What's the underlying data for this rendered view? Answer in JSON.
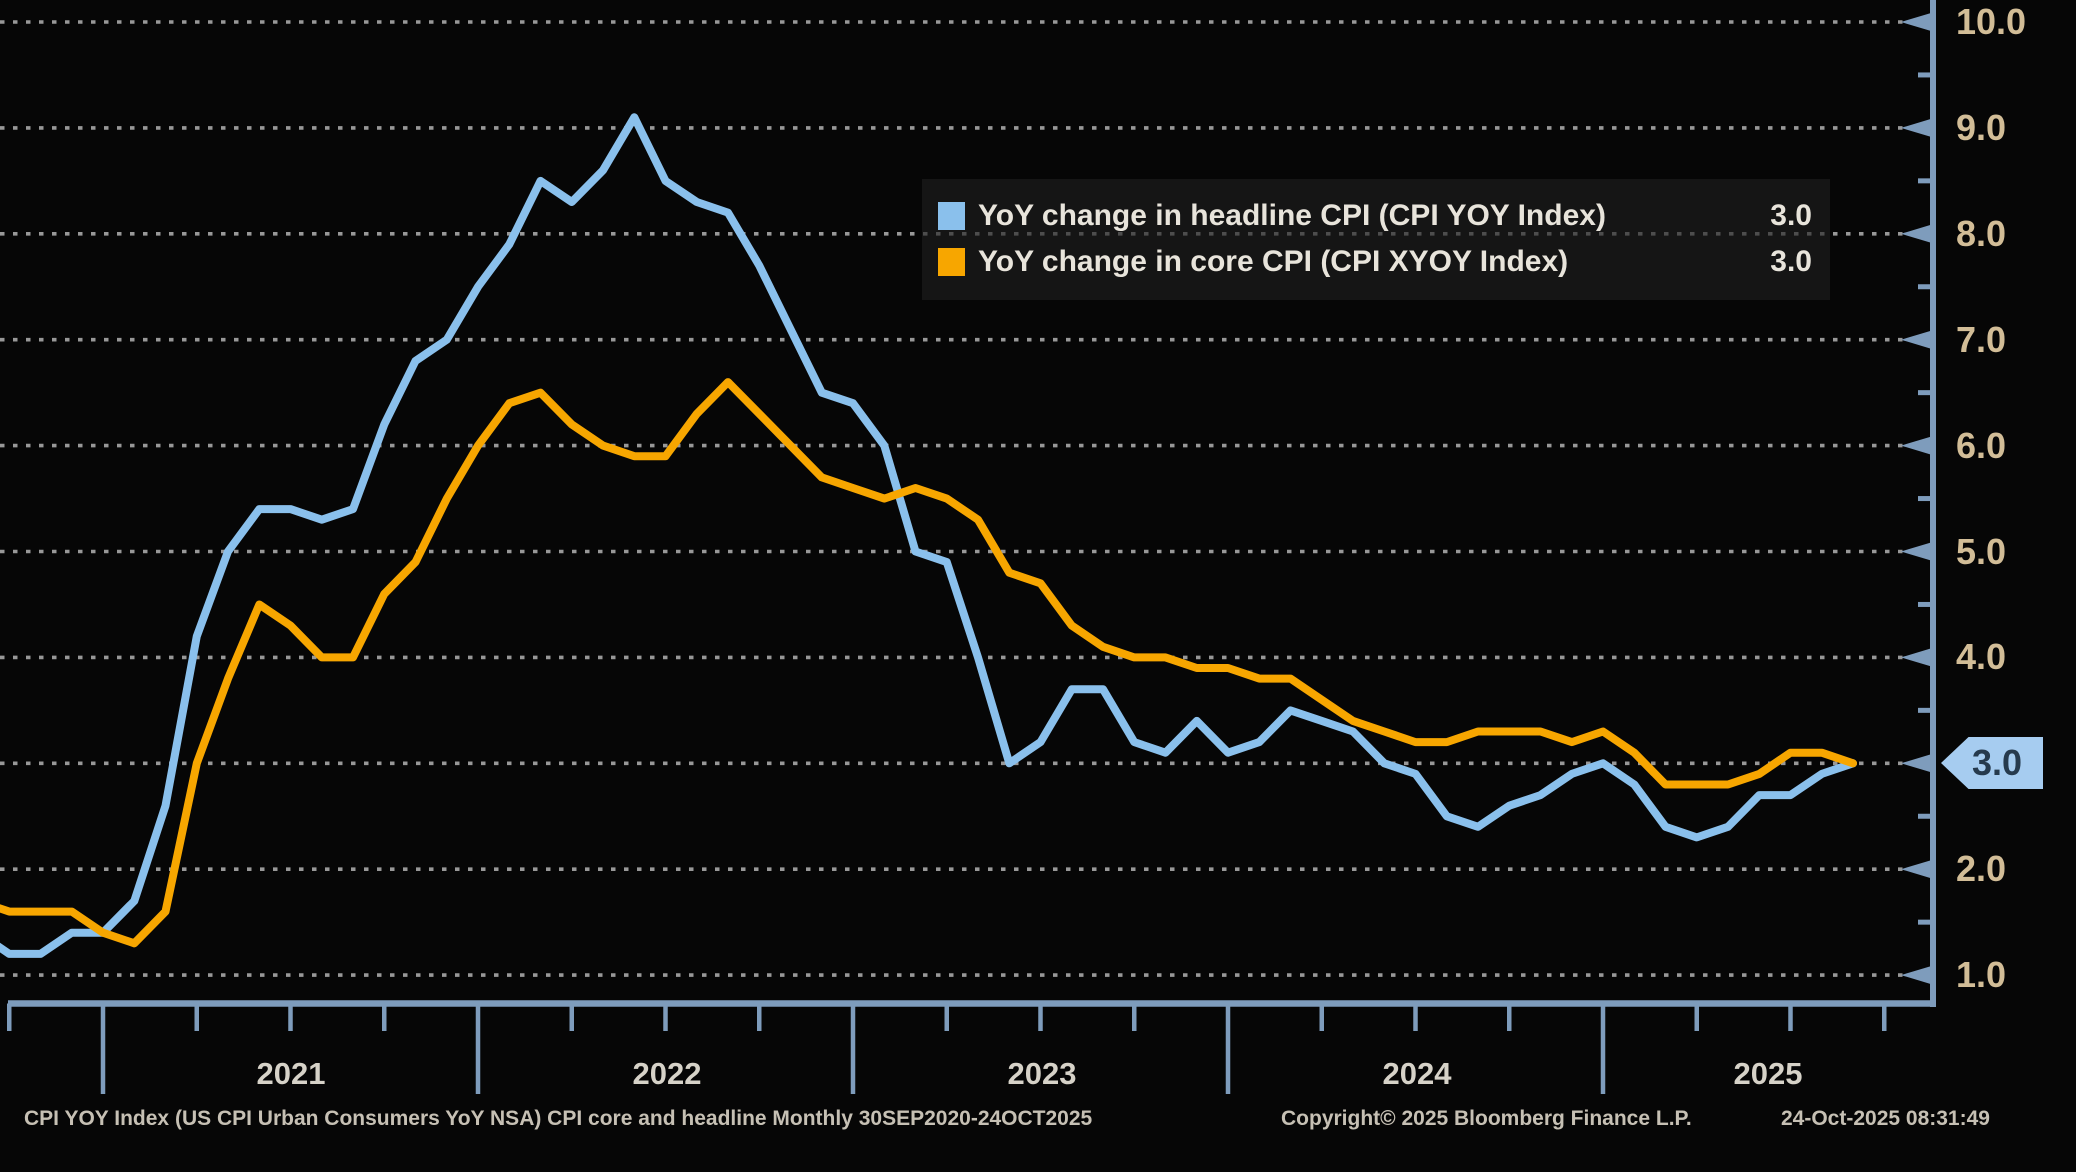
{
  "chart_data": {
    "type": "line",
    "title": "",
    "x_start": "2020-09",
    "x_end": "2025-09",
    "x_frequency": "monthly",
    "xlabel": "",
    "ylabel": "",
    "ylim": [
      1.0,
      10.0
    ],
    "y_tick_step": 1.0,
    "grid": "dotted horizontal lines at every 1.0",
    "legend_position": "top-right-inside",
    "series": [
      {
        "name": "YoY change in headline CPI (CPI YOY Index)",
        "color": "#8AC0EC",
        "last_value": 3.0,
        "values": [
          1.4,
          1.2,
          1.2,
          1.4,
          1.4,
          1.7,
          2.6,
          4.2,
          5.0,
          5.4,
          5.4,
          5.3,
          5.4,
          6.2,
          6.8,
          7.0,
          7.5,
          7.9,
          8.5,
          8.3,
          8.6,
          9.1,
          8.5,
          8.3,
          8.2,
          7.7,
          7.1,
          6.5,
          6.4,
          6.0,
          5.0,
          4.9,
          4.0,
          3.0,
          3.2,
          3.7,
          3.7,
          3.2,
          3.1,
          3.4,
          3.1,
          3.2,
          3.5,
          3.4,
          3.3,
          3.0,
          2.9,
          2.5,
          2.4,
          2.6,
          2.7,
          2.9,
          3.0,
          2.8,
          2.4,
          2.3,
          2.4,
          2.7,
          2.7,
          2.9,
          3.0
        ]
      },
      {
        "name": "YoY change in core CPI (CPI XYOY Index)",
        "color": "#F7A600",
        "last_value": 3.0,
        "values": [
          1.7,
          1.6,
          1.6,
          1.6,
          1.4,
          1.3,
          1.6,
          3.0,
          3.8,
          4.5,
          4.3,
          4.0,
          4.0,
          4.6,
          4.9,
          5.5,
          6.0,
          6.4,
          6.5,
          6.2,
          6.0,
          5.9,
          5.9,
          6.3,
          6.6,
          6.3,
          6.0,
          5.7,
          5.6,
          5.5,
          5.6,
          5.5,
          5.3,
          4.8,
          4.7,
          4.3,
          4.1,
          4.0,
          4.0,
          3.9,
          3.9,
          3.8,
          3.8,
          3.6,
          3.4,
          3.3,
          3.2,
          3.2,
          3.3,
          3.3,
          3.3,
          3.2,
          3.3,
          3.1,
          2.8,
          2.8,
          2.8,
          2.9,
          3.1,
          3.1,
          3.0
        ]
      }
    ]
  },
  "legend": {
    "items": [
      {
        "label": "YoY change in headline CPI (CPI YOY Index)",
        "value": "3.0",
        "color": "#8AC0EC"
      },
      {
        "label": "YoY change in core CPI (CPI XYOY Index)",
        "value": "3.0",
        "color": "#F7A600"
      }
    ]
  },
  "y_axis": {
    "labels": [
      "10.0",
      "9.0",
      "8.0",
      "7.0",
      "6.0",
      "5.0",
      "4.0",
      "3.0",
      "2.0",
      "1.0"
    ],
    "values": [
      10,
      9,
      8,
      7,
      6,
      5,
      4,
      3,
      2,
      1
    ]
  },
  "x_axis": {
    "year_labels": [
      "2021",
      "2022",
      "2023",
      "2024",
      "2025"
    ]
  },
  "highlight_tag": {
    "value": "3.0",
    "bg_color": "#A6CCF0",
    "text_color": "#263A4D"
  },
  "footer": {
    "description": "CPI YOY Index (US CPI Urban Consumers YoY NSA) CPI core and headline Monthly 30SEP2020-24OCT2025",
    "copyright": "Copyright© 2025 Bloomberg Finance L.P.",
    "timestamp": "24-Oct-2025 08:31:49"
  },
  "colors": {
    "background": "#060606",
    "axis": "#7E9CBC",
    "gridline": "#A8A8A8",
    "y_tick_label": "#D2BD97",
    "x_tick_label": "#D6D2C8",
    "legend_text": "#E8E4DB",
    "footer_text": "#C6C0B4"
  }
}
